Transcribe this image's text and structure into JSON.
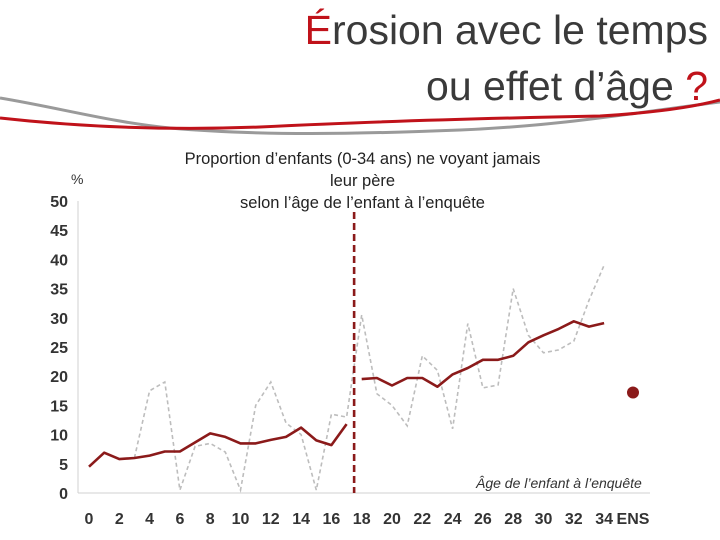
{
  "title": {
    "line1_first_letter": "É",
    "line1_rest": "rosion avec le temps",
    "line2_text": "ou effet d’âge ",
    "line2_mark": "?"
  },
  "colors": {
    "accent": "#c0121a",
    "series_main": "#8b1a1a",
    "series_dashed": "#bdbdbd",
    "deco_gray": "#9a9a9a"
  },
  "chart_data": {
    "type": "line",
    "title": "Proportion d’enfants (0-34 ans) ne voyant jamais leur père selon l’âge de l’enfant à l’enquête",
    "subtitle_lines": [
      "Proportion d’enfants (0-34 ans) ne voyant jamais",
      "leur père",
      "selon l’âge de l’enfant à l’enquête"
    ],
    "ylabel": "%",
    "xlabel": "Âge de l’enfant à l’enquête",
    "ylim": [
      0,
      50
    ],
    "yticks": [
      0,
      5,
      10,
      15,
      20,
      25,
      30,
      35,
      40,
      45,
      50
    ],
    "xticks": [
      "0",
      "2",
      "4",
      "6",
      "8",
      "10",
      "12",
      "14",
      "16",
      "18",
      "20",
      "22",
      "24",
      "26",
      "28",
      "30",
      "32",
      "34",
      "ENS"
    ],
    "grid": false,
    "vertical_marker_x": 17.5,
    "series": [
      {
        "style": "solid",
        "x": [
          0,
          1,
          2,
          3,
          4,
          5,
          6,
          8,
          9,
          10,
          11,
          12,
          13,
          14,
          15,
          16,
          17,
          18,
          19,
          20,
          21,
          22,
          23,
          24,
          25,
          26,
          27,
          28,
          29,
          30,
          31,
          32,
          33,
          34
        ],
        "y": [
          4.5,
          6.9,
          5.8,
          6.0,
          6.4,
          7.1,
          7.1,
          10.2,
          9.6,
          8.5,
          8.5,
          9.1,
          9.6,
          11.2,
          9.0,
          8.2,
          11.8,
          19.5,
          19.7,
          18.4,
          19.7,
          19.7,
          18.2,
          20.3,
          21.4,
          22.8,
          22.8,
          23.5,
          25.8,
          27.0,
          28.1,
          29.4,
          28.5,
          29.1
        ]
      },
      {
        "style": "dashed",
        "x": [
          3,
          4,
          5,
          6,
          7,
          8,
          9,
          10,
          11,
          12,
          13,
          14,
          15,
          16,
          17,
          18,
          19,
          20,
          21,
          22,
          23,
          24,
          25,
          26,
          27,
          28,
          29,
          30,
          31,
          32,
          33,
          34
        ],
        "y": [
          6.0,
          17.5,
          19.0,
          0.5,
          8.0,
          8.5,
          7.0,
          0.5,
          15.0,
          19.0,
          12.0,
          10.0,
          0.5,
          13.5,
          13.0,
          30.5,
          17.0,
          15.0,
          11.5,
          23.5,
          21.0,
          11.0,
          29.0,
          18.0,
          18.5,
          35.0,
          27.0,
          24.0,
          24.5,
          26.0,
          33.0,
          39.0
        ]
      },
      {
        "style": "point",
        "x": [
          "ENS"
        ],
        "y": [
          17.2
        ]
      }
    ]
  }
}
